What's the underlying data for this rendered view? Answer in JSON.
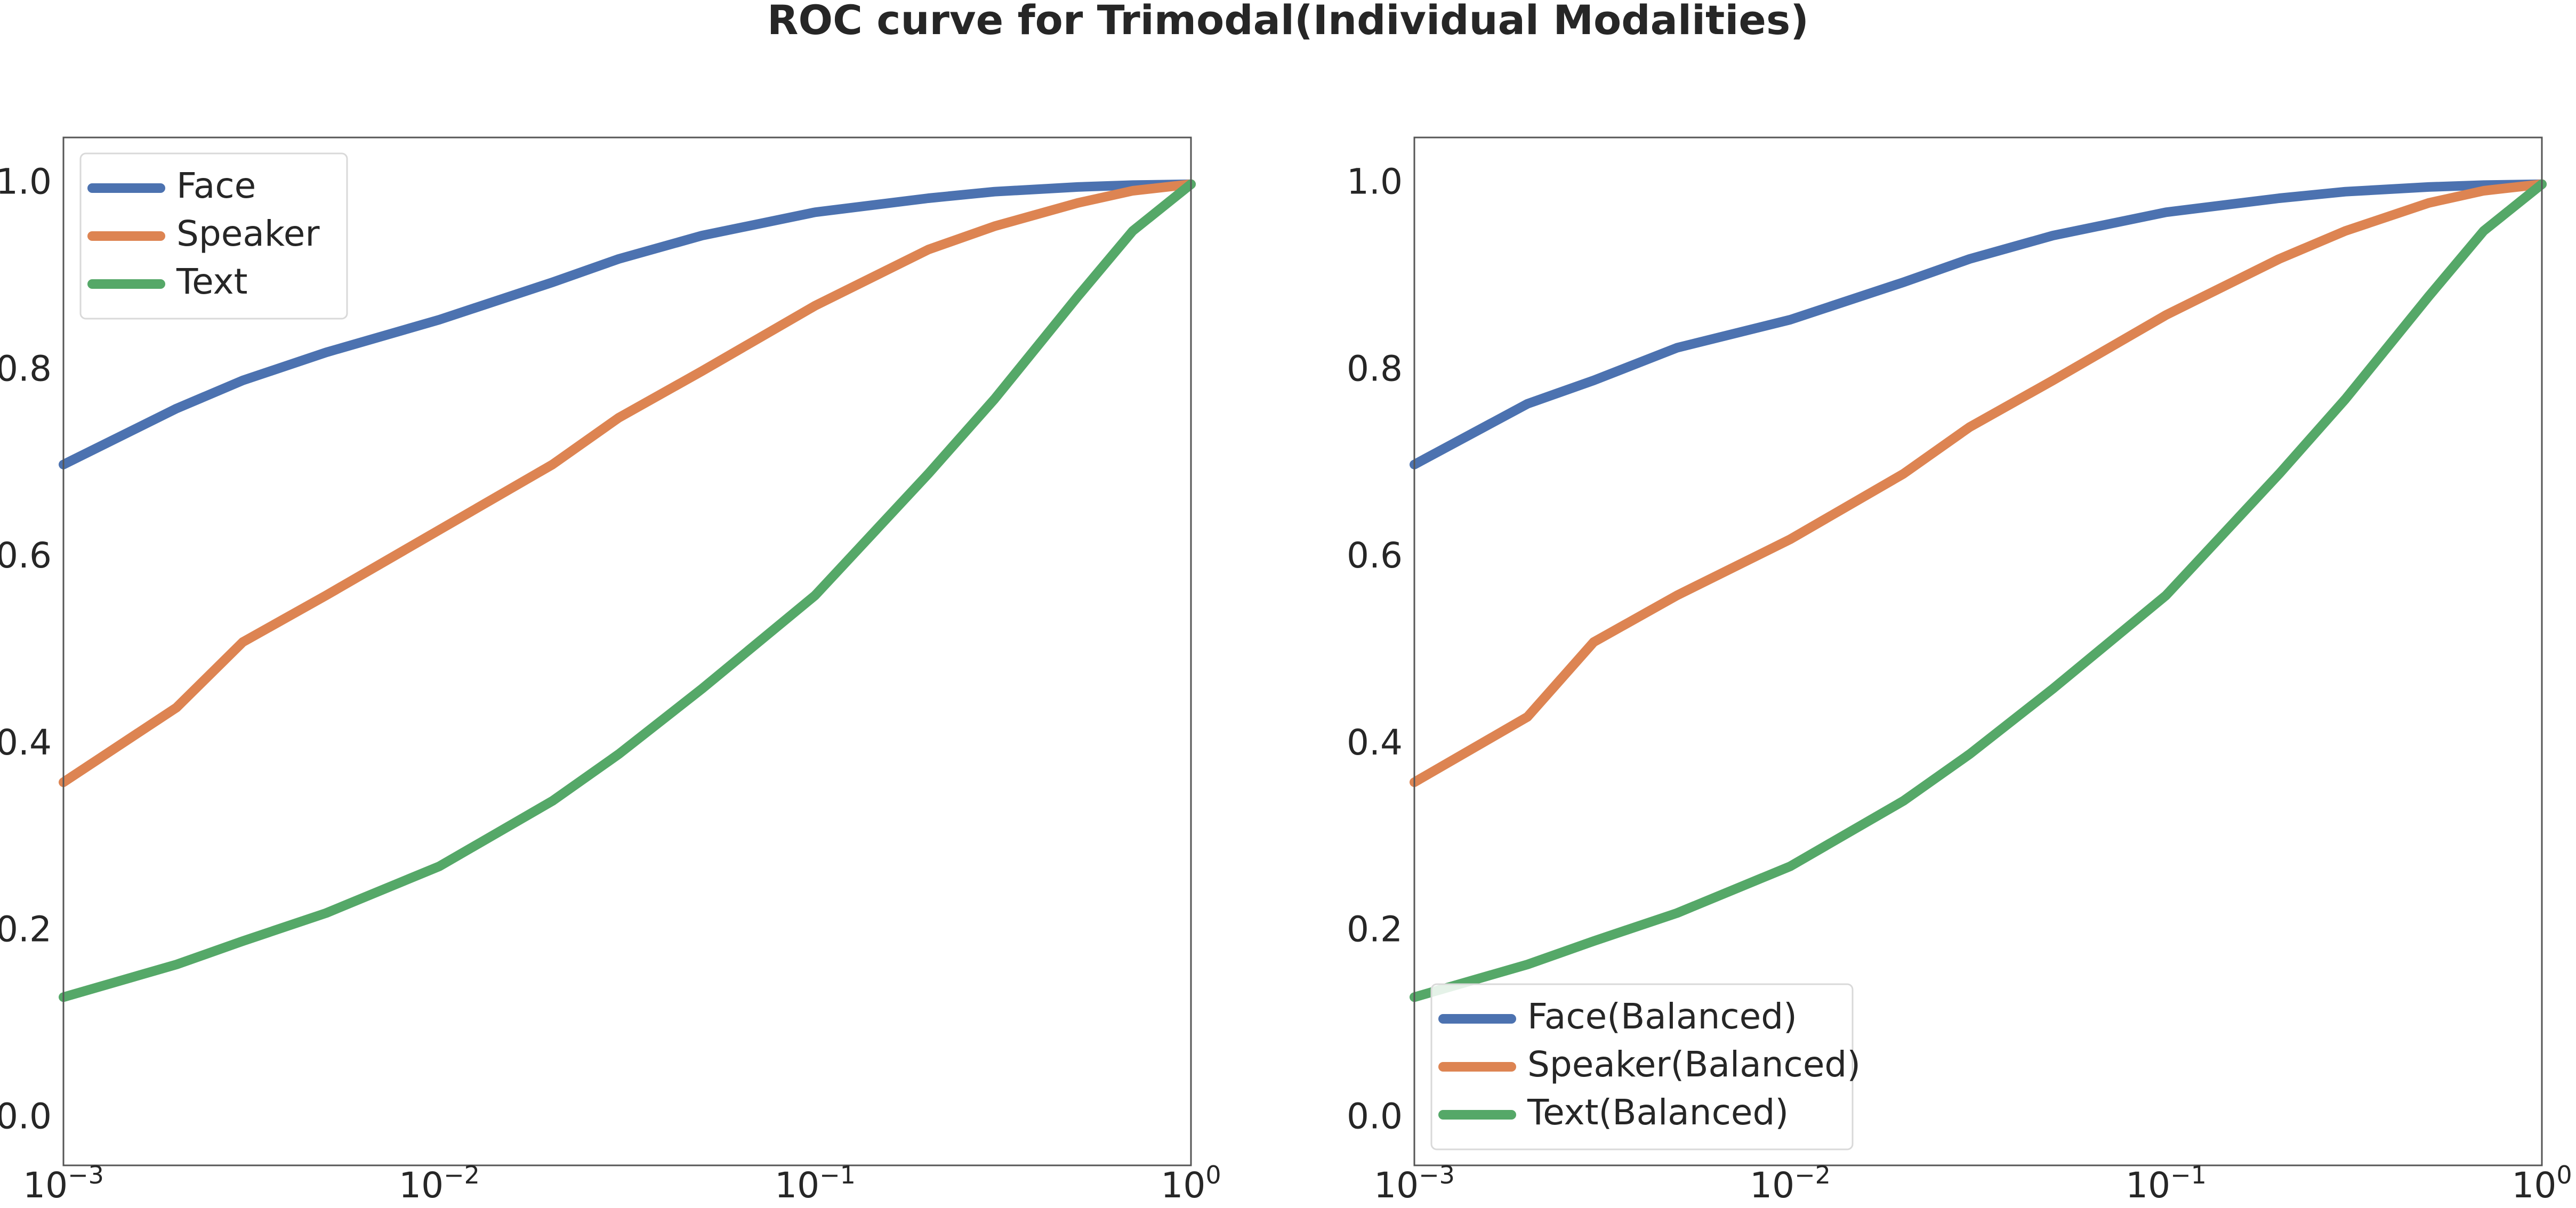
{
  "figure_title": "ROC curve for Trimodal(Individual Modalities)",
  "colors": {
    "face": "#4C72B0",
    "speaker": "#DD8452",
    "text": "#55A868",
    "axis": "#555555",
    "legend_border": "#d9d9d9"
  },
  "chart_data": [
    {
      "type": "line",
      "xscale": "log",
      "xlim": [
        0.001,
        1
      ],
      "ylim": [
        -0.05,
        1.05
      ],
      "grid": false,
      "legend_position": "upper-left",
      "title": "",
      "xlabel": "",
      "ylabel": "",
      "x_ticks": [
        0.001,
        0.01,
        0.1,
        1
      ],
      "x_tick_labels": [
        {
          "base": "10",
          "exp": "−3"
        },
        {
          "base": "10",
          "exp": "−2"
        },
        {
          "base": "10",
          "exp": "−1"
        },
        {
          "base": "10",
          "exp": "0"
        }
      ],
      "y_ticks": [
        0.0,
        0.2,
        0.4,
        0.6,
        0.8,
        1.0
      ],
      "y_tick_labels": [
        "0.0",
        "0.2",
        "0.4",
        "0.6",
        "0.8",
        "1.0"
      ],
      "x": [
        0.001,
        0.002,
        0.003,
        0.005,
        0.01,
        0.02,
        0.03,
        0.05,
        0.1,
        0.2,
        0.3,
        0.5,
        0.7,
        1.0
      ],
      "series": [
        {
          "name": "Face",
          "color": "#4C72B0",
          "values": [
            0.7,
            0.76,
            0.79,
            0.82,
            0.855,
            0.895,
            0.92,
            0.945,
            0.97,
            0.985,
            0.992,
            0.997,
            0.999,
            1.0
          ]
        },
        {
          "name": "Speaker",
          "color": "#DD8452",
          "values": [
            0.36,
            0.44,
            0.51,
            0.56,
            0.63,
            0.7,
            0.75,
            0.8,
            0.87,
            0.93,
            0.955,
            0.98,
            0.993,
            1.0
          ]
        },
        {
          "name": "Text",
          "color": "#55A868",
          "values": [
            0.13,
            0.165,
            0.19,
            0.22,
            0.27,
            0.34,
            0.39,
            0.46,
            0.56,
            0.69,
            0.77,
            0.88,
            0.95,
            1.0
          ]
        }
      ]
    },
    {
      "type": "line",
      "xscale": "log",
      "xlim": [
        0.001,
        1
      ],
      "ylim": [
        -0.05,
        1.05
      ],
      "grid": false,
      "legend_position": "lower-left",
      "title": "",
      "xlabel": "",
      "ylabel": "",
      "x_ticks": [
        0.001,
        0.01,
        0.1,
        1
      ],
      "x_tick_labels": [
        {
          "base": "10",
          "exp": "−3"
        },
        {
          "base": "10",
          "exp": "−2"
        },
        {
          "base": "10",
          "exp": "−1"
        },
        {
          "base": "10",
          "exp": "0"
        }
      ],
      "y_ticks": [
        0.0,
        0.2,
        0.4,
        0.6,
        0.8,
        1.0
      ],
      "y_tick_labels": [
        "0.0",
        "0.2",
        "0.4",
        "0.6",
        "0.8",
        "1.0"
      ],
      "x": [
        0.001,
        0.002,
        0.003,
        0.005,
        0.01,
        0.02,
        0.03,
        0.05,
        0.1,
        0.2,
        0.3,
        0.5,
        0.7,
        1.0
      ],
      "series": [
        {
          "name": "Face(Balanced)",
          "color": "#4C72B0",
          "values": [
            0.7,
            0.765,
            0.79,
            0.825,
            0.855,
            0.895,
            0.92,
            0.945,
            0.97,
            0.985,
            0.992,
            0.997,
            0.999,
            1.0
          ]
        },
        {
          "name": "Speaker(Balanced)",
          "color": "#DD8452",
          "values": [
            0.36,
            0.43,
            0.51,
            0.56,
            0.62,
            0.69,
            0.74,
            0.79,
            0.86,
            0.92,
            0.95,
            0.98,
            0.993,
            1.0
          ]
        },
        {
          "name": "Text(Balanced)",
          "color": "#55A868",
          "values": [
            0.13,
            0.165,
            0.19,
            0.22,
            0.27,
            0.34,
            0.39,
            0.46,
            0.56,
            0.69,
            0.77,
            0.88,
            0.95,
            1.0
          ]
        }
      ]
    }
  ]
}
